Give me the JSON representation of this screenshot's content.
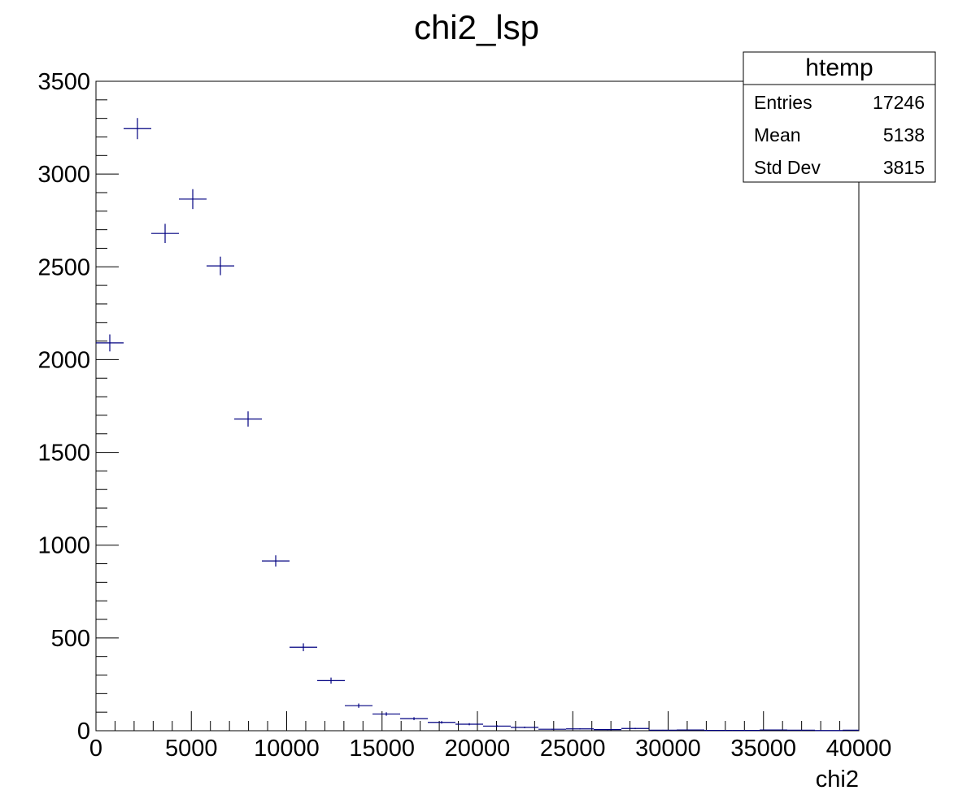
{
  "chart_data": {
    "type": "scatter",
    "title": "chi2_lsp",
    "xlabel": "chi2",
    "ylabel": "",
    "xlim": [
      0,
      40000
    ],
    "ylim": [
      0,
      3500
    ],
    "x_ticks": [
      0,
      5000,
      10000,
      15000,
      20000,
      25000,
      30000,
      35000,
      40000
    ],
    "y_ticks": [
      0,
      500,
      1000,
      1500,
      2000,
      2500,
      3000,
      3500
    ],
    "bin_width": 1450,
    "marker_color": "#000080",
    "series": [
      {
        "points": [
          {
            "x": 725,
            "y": 2090
          },
          {
            "x": 2175,
            "y": 3245
          },
          {
            "x": 3625,
            "y": 2680
          },
          {
            "x": 5075,
            "y": 2865
          },
          {
            "x": 6525,
            "y": 2505
          },
          {
            "x": 7975,
            "y": 1680
          },
          {
            "x": 9425,
            "y": 915
          },
          {
            "x": 10875,
            "y": 450
          },
          {
            "x": 12325,
            "y": 270
          },
          {
            "x": 13775,
            "y": 135
          },
          {
            "x": 15225,
            "y": 90
          },
          {
            "x": 16675,
            "y": 65
          },
          {
            "x": 18125,
            "y": 45
          },
          {
            "x": 19575,
            "y": 35
          },
          {
            "x": 21025,
            "y": 25
          },
          {
            "x": 22475,
            "y": 18
          },
          {
            "x": 23925,
            "y": 8
          },
          {
            "x": 25375,
            "y": 10
          },
          {
            "x": 26825,
            "y": 6
          },
          {
            "x": 28275,
            "y": 12
          },
          {
            "x": 29725,
            "y": 3
          },
          {
            "x": 31175,
            "y": 4
          },
          {
            "x": 32625,
            "y": 2
          },
          {
            "x": 34075,
            "y": 2
          },
          {
            "x": 35525,
            "y": 4
          },
          {
            "x": 36975,
            "y": 3
          },
          {
            "x": 38425,
            "y": 1
          },
          {
            "x": 39875,
            "y": 3
          }
        ]
      }
    ],
    "legend": "top-right",
    "stats_box": {
      "title": "htemp",
      "rows": [
        {
          "label": "Entries",
          "value": "17246"
        },
        {
          "label": "Mean",
          "value": "5138"
        },
        {
          "label": "Std Dev",
          "value": "3815"
        }
      ]
    }
  }
}
